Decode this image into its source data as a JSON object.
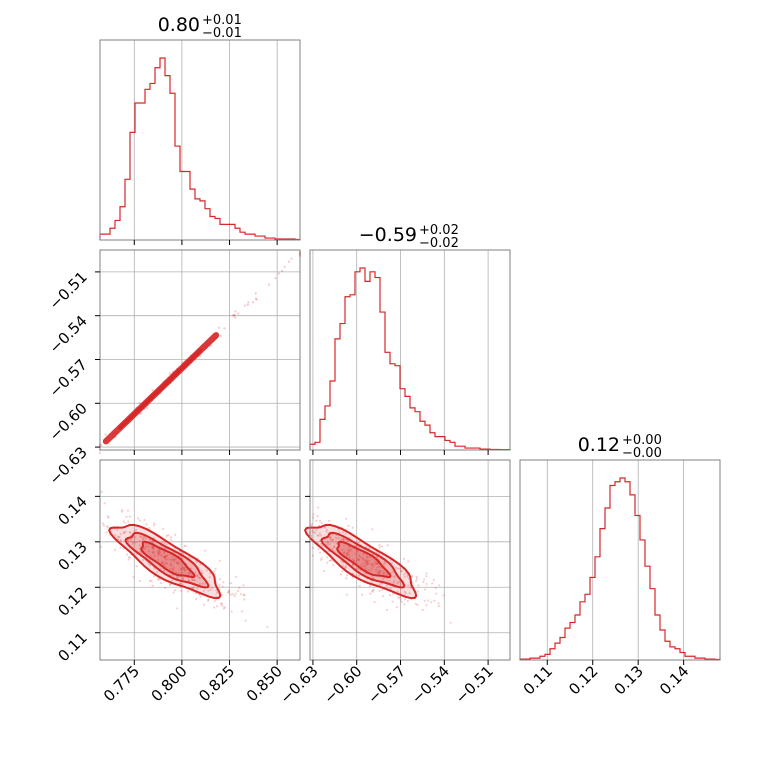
{
  "chart_data": {
    "type": "corner",
    "color": "#d62728",
    "grid": true,
    "parameters": [
      {
        "median": "0.80",
        "plus": "+0.01",
        "minus": "−0.01",
        "range": [
          0.757,
          0.862
        ],
        "ticks": [
          0.775,
          0.8,
          0.825,
          0.85
        ],
        "tick_labels": [
          "0.775",
          "0.800",
          "0.825",
          "0.850"
        ]
      },
      {
        "median": "−0.59",
        "plus": "+0.02",
        "minus": "−0.02",
        "range": [
          -0.632,
          -0.495
        ],
        "ticks": [
          -0.63,
          -0.6,
          -0.57,
          -0.54,
          -0.51
        ],
        "tick_labels": [
          "−0.63",
          "−0.60",
          "−0.57",
          "−0.54",
          "−0.51"
        ]
      },
      {
        "median": "0.12",
        "plus": "+0.00",
        "minus": "−0.00",
        "range": [
          0.104,
          0.148
        ],
        "ticks": [
          0.11,
          0.12,
          0.13,
          0.14
        ],
        "tick_labels": [
          "0.11",
          "0.12",
          "0.13",
          "0.14"
        ]
      }
    ],
    "histograms": [
      {
        "param": 0,
        "counts": [
          3,
          3,
          6,
          10,
          17,
          31,
          55,
          70,
          70,
          77,
          80,
          88,
          93,
          84,
          75,
          48,
          35,
          35,
          26,
          21,
          20,
          16,
          12,
          11,
          8,
          8,
          8,
          6,
          4,
          3,
          3,
          2,
          2,
          1,
          1,
          0.5,
          0.5,
          0.5,
          0.5,
          0.3
        ]
      },
      {
        "param": 1,
        "counts": [
          3,
          4,
          16,
          23,
          36,
          58,
          66,
          80,
          81,
          93,
          95,
          88,
          93,
          90,
          72,
          51,
          45,
          44,
          32,
          28,
          22,
          20,
          15,
          13,
          9,
          7,
          7,
          5,
          4,
          2,
          2,
          1,
          1,
          1,
          0.5,
          0.5,
          0.3,
          0.3,
          0.2,
          0.2
        ]
      },
      {
        "param": 2,
        "counts": [
          0.5,
          0.5,
          1,
          1,
          2,
          3,
          6,
          9,
          12,
          17,
          20,
          24,
          31,
          35,
          44,
          55,
          70,
          81,
          93,
          95,
          97,
          95,
          88,
          77,
          64,
          50,
          38,
          24,
          16,
          10,
          7,
          6,
          4,
          2,
          2,
          1,
          1,
          0.5,
          0.5,
          0.3
        ]
      }
    ],
    "correlations": [
      {
        "x_param": 0,
        "y_param": 1,
        "line": [
          [
            0.757,
            -0.63
          ],
          [
            0.862,
            -0.498
          ]
        ]
      },
      {
        "x_param": 0,
        "y_param": 2,
        "center": [
          0.792,
          0.126
        ]
      },
      {
        "x_param": 1,
        "y_param": 2,
        "center": [
          -0.596,
          0.126
        ]
      }
    ]
  }
}
